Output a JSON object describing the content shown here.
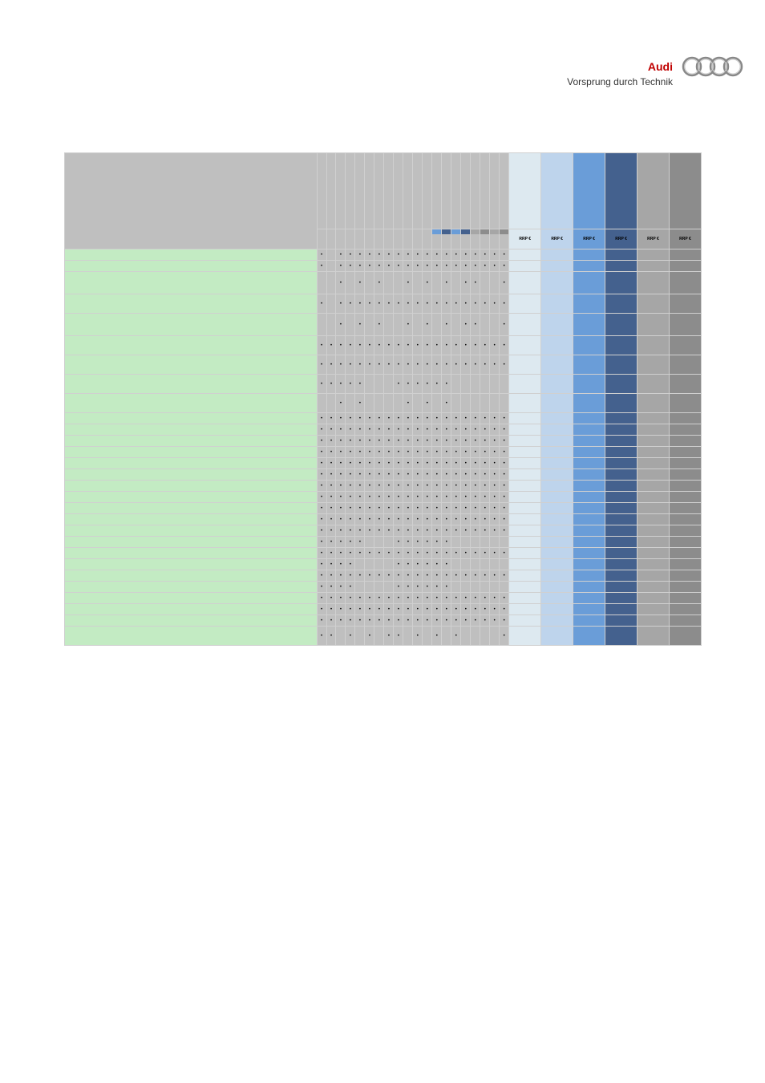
{
  "brand": {
    "name": "Audi",
    "tagline": "Vorsprung durch Technik"
  },
  "table": {
    "price_label": "RRP €",
    "price_headers": [
      {
        "bg": "#dde9f0"
      },
      {
        "bg": "#bed4ec"
      },
      {
        "bg": "#6a9dd8"
      },
      {
        "bg": "#44618e"
      },
      {
        "bg": "#a6a6a6"
      },
      {
        "bg": "#8c8c8c"
      }
    ],
    "stripe_colors": [
      "#6a9dd8",
      "#44618e",
      "#6a9dd8",
      "#44618e",
      "#a6a6a6",
      "#8c8c8c",
      "#a6a6a6",
      "#8c8c8c"
    ],
    "num_data_cols": 20,
    "rows": [
      {
        "h": "n",
        "c": [
          1,
          0,
          1,
          1,
          1,
          1,
          1,
          1,
          1,
          1,
          1,
          1,
          1,
          1,
          1,
          1,
          1,
          1,
          1,
          1
        ]
      },
      {
        "h": "n",
        "c": [
          1,
          0,
          1,
          1,
          1,
          1,
          1,
          1,
          1,
          1,
          1,
          1,
          1,
          1,
          1,
          1,
          1,
          1,
          1,
          1
        ]
      },
      {
        "h": "t",
        "c": [
          0,
          0,
          1,
          0,
          1,
          0,
          1,
          0,
          0,
          1,
          0,
          1,
          0,
          1,
          0,
          1,
          1,
          0,
          0,
          1
        ]
      },
      {
        "h": "t2",
        "c": [
          1,
          0,
          1,
          1,
          1,
          1,
          1,
          1,
          1,
          1,
          1,
          1,
          1,
          1,
          1,
          1,
          1,
          1,
          1,
          1
        ]
      },
      {
        "h": "t",
        "c": [
          0,
          0,
          1,
          0,
          1,
          0,
          1,
          0,
          0,
          1,
          0,
          1,
          0,
          1,
          0,
          1,
          1,
          0,
          0,
          1
        ]
      },
      {
        "h": "t2",
        "c": [
          1,
          1,
          1,
          1,
          1,
          1,
          1,
          1,
          1,
          1,
          1,
          1,
          1,
          1,
          1,
          1,
          1,
          1,
          1,
          1
        ]
      },
      {
        "h": "t2",
        "c": [
          1,
          1,
          1,
          1,
          1,
          1,
          1,
          1,
          1,
          1,
          1,
          1,
          1,
          1,
          1,
          1,
          1,
          1,
          1,
          1
        ]
      },
      {
        "h": "t2",
        "c": [
          1,
          1,
          1,
          1,
          1,
          0,
          0,
          0,
          1,
          1,
          1,
          1,
          1,
          1,
          0,
          0,
          0,
          0,
          0,
          0
        ]
      },
      {
        "h": "t2",
        "c": [
          0,
          0,
          1,
          0,
          1,
          0,
          0,
          0,
          0,
          1,
          0,
          1,
          0,
          1,
          0,
          0,
          0,
          0,
          0,
          0
        ]
      },
      {
        "h": "n",
        "c": [
          1,
          1,
          1,
          1,
          1,
          1,
          1,
          1,
          1,
          1,
          1,
          1,
          1,
          1,
          1,
          1,
          1,
          1,
          1,
          1
        ]
      },
      {
        "h": "n",
        "c": [
          1,
          1,
          1,
          1,
          1,
          1,
          1,
          1,
          1,
          1,
          1,
          1,
          1,
          1,
          1,
          1,
          1,
          1,
          1,
          1
        ]
      },
      {
        "h": "n",
        "c": [
          1,
          1,
          1,
          1,
          1,
          1,
          1,
          1,
          1,
          1,
          1,
          1,
          1,
          1,
          1,
          1,
          1,
          1,
          1,
          1
        ]
      },
      {
        "h": "n",
        "c": [
          1,
          1,
          1,
          1,
          1,
          1,
          1,
          1,
          1,
          1,
          1,
          1,
          1,
          1,
          1,
          1,
          1,
          1,
          1,
          1
        ]
      },
      {
        "h": "n",
        "c": [
          1,
          1,
          1,
          1,
          1,
          1,
          1,
          1,
          1,
          1,
          1,
          1,
          1,
          1,
          1,
          1,
          1,
          1,
          1,
          1
        ]
      },
      {
        "h": "n",
        "c": [
          1,
          1,
          1,
          1,
          1,
          1,
          1,
          1,
          1,
          1,
          1,
          1,
          1,
          1,
          1,
          1,
          1,
          1,
          1,
          1
        ]
      },
      {
        "h": "n",
        "c": [
          1,
          1,
          1,
          1,
          1,
          1,
          1,
          1,
          1,
          1,
          1,
          1,
          1,
          1,
          1,
          1,
          1,
          1,
          1,
          1
        ]
      },
      {
        "h": "n",
        "c": [
          1,
          1,
          1,
          1,
          1,
          1,
          1,
          1,
          1,
          1,
          1,
          1,
          1,
          1,
          1,
          1,
          1,
          1,
          1,
          1
        ]
      },
      {
        "h": "n",
        "c": [
          1,
          1,
          1,
          1,
          1,
          1,
          1,
          1,
          1,
          1,
          1,
          1,
          1,
          1,
          1,
          1,
          1,
          1,
          1,
          1
        ]
      },
      {
        "h": "n",
        "c": [
          1,
          1,
          1,
          1,
          1,
          1,
          1,
          1,
          1,
          1,
          1,
          1,
          1,
          1,
          1,
          1,
          1,
          1,
          1,
          1
        ]
      },
      {
        "h": "n",
        "c": [
          1,
          1,
          1,
          1,
          1,
          1,
          1,
          1,
          1,
          1,
          1,
          1,
          1,
          1,
          1,
          1,
          1,
          1,
          1,
          1
        ]
      },
      {
        "h": "n",
        "c": [
          1,
          1,
          1,
          1,
          1,
          0,
          0,
          0,
          1,
          1,
          1,
          1,
          1,
          1,
          0,
          0,
          0,
          0,
          0,
          0
        ]
      },
      {
        "h": "n",
        "c": [
          1,
          1,
          1,
          1,
          1,
          1,
          1,
          1,
          1,
          1,
          1,
          1,
          1,
          1,
          1,
          1,
          1,
          1,
          1,
          1
        ]
      },
      {
        "h": "n",
        "c": [
          1,
          1,
          1,
          1,
          0,
          0,
          0,
          0,
          1,
          1,
          1,
          1,
          1,
          1,
          0,
          0,
          0,
          0,
          0,
          0
        ]
      },
      {
        "h": "n",
        "c": [
          1,
          1,
          1,
          1,
          1,
          1,
          1,
          1,
          1,
          1,
          1,
          1,
          1,
          1,
          1,
          1,
          1,
          1,
          1,
          1
        ]
      },
      {
        "h": "n",
        "c": [
          1,
          1,
          1,
          1,
          0,
          0,
          0,
          0,
          1,
          1,
          1,
          1,
          1,
          1,
          0,
          0,
          0,
          0,
          0,
          0
        ]
      },
      {
        "h": "n",
        "c": [
          1,
          1,
          1,
          1,
          1,
          1,
          1,
          1,
          1,
          1,
          1,
          1,
          1,
          1,
          1,
          1,
          1,
          1,
          1,
          1
        ]
      },
      {
        "h": "n",
        "c": [
          1,
          1,
          1,
          1,
          1,
          1,
          1,
          1,
          1,
          1,
          1,
          1,
          1,
          1,
          1,
          1,
          1,
          1,
          1,
          1
        ]
      },
      {
        "h": "n",
        "c": [
          1,
          1,
          1,
          1,
          1,
          1,
          1,
          1,
          1,
          1,
          1,
          1,
          1,
          1,
          1,
          1,
          1,
          1,
          1,
          1
        ]
      },
      {
        "h": "t2",
        "c": [
          1,
          1,
          0,
          1,
          0,
          1,
          0,
          1,
          1,
          0,
          1,
          0,
          1,
          0,
          1,
          0,
          0,
          0,
          0,
          1
        ]
      }
    ]
  }
}
